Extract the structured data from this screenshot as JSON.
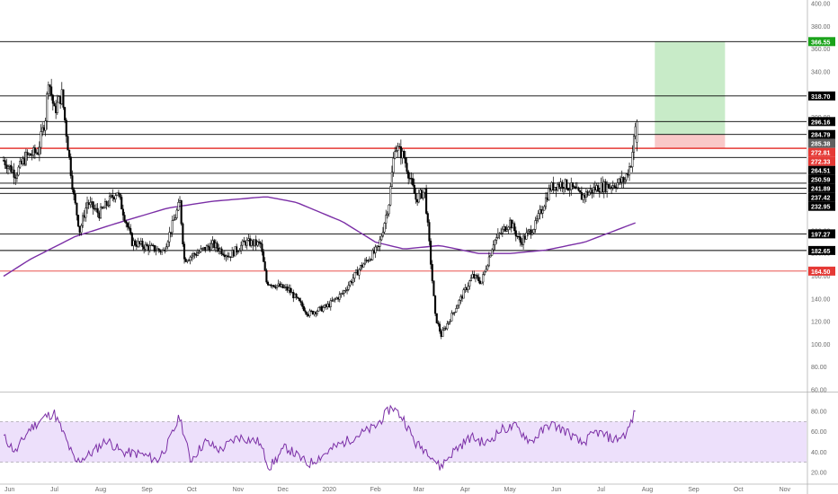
{
  "chart_data": {
    "type": "candlestick",
    "colors": {
      "background": "#ffffff",
      "candle": "#000000",
      "ma": "#7b2fa6",
      "rsi": "#7b2fa6",
      "rsi_band": "#ede0fb",
      "level_black": "#000000",
      "level_red": "#e53935",
      "target_zone": "#c8ebc8",
      "stop_zone": "#f9c8c8",
      "target_label": "#1aa31a",
      "red_label": "#e53935"
    },
    "price_axis": {
      "range": [
        60,
        400
      ],
      "ticks": [
        "400.00",
        "380.00",
        "360.00",
        "340.00",
        "320.00",
        "300.00",
        "280.00",
        "260.00",
        "240.00",
        "220.00",
        "200.00",
        "180.00",
        "160.00",
        "140.00",
        "120.00",
        "100.00",
        "80.00",
        "60.00"
      ]
    },
    "rsi_axis": {
      "range": [
        20,
        90
      ],
      "ticks": [
        "80.00",
        "60.00",
        "40.00",
        "20.00"
      ],
      "band": [
        30,
        70
      ]
    },
    "time_axis": [
      "Jun",
      "Jul",
      "Aug",
      "Sep",
      "Oct",
      "Nov",
      "Dec",
      "2020",
      "Feb",
      "Mar",
      "Apr",
      "May",
      "Jun",
      "Jul",
      "Aug",
      "Sep",
      "Oct",
      "Nov"
    ],
    "levels": [
      {
        "value": 366.55,
        "label": "366.55",
        "style": "green"
      },
      {
        "value": 318.7,
        "label": "318.70",
        "style": "black"
      },
      {
        "value": 296.16,
        "label": "296.16",
        "style": "black"
      },
      {
        "value": 284.79,
        "label": "284.79",
        "style": "black"
      },
      {
        "value": 285.38,
        "label": "285.38",
        "style": "gray"
      },
      {
        "value": 272.81,
        "label": "272.81",
        "style": "red"
      },
      {
        "value": 272.33,
        "label": "272.33",
        "style": "red"
      },
      {
        "value": 264.51,
        "label": "264.51",
        "style": "black"
      },
      {
        "value": 250.59,
        "label": "250.59",
        "style": "black"
      },
      {
        "value": 241.89,
        "label": "241.89",
        "style": "black"
      },
      {
        "value": 237.42,
        "label": "237.42",
        "style": "black"
      },
      {
        "value": 232.95,
        "label": "232.95",
        "style": "black"
      },
      {
        "value": 197.27,
        "label": "197.27",
        "style": "black"
      },
      {
        "value": 182.65,
        "label": "182.65",
        "style": "black"
      },
      {
        "value": 164.5,
        "label": "164.50",
        "style": "red"
      }
    ],
    "position": {
      "target": 366.55,
      "entry": 284.79,
      "stop": 272.33
    },
    "price_path": [
      [
        "2019-05-28",
        262
      ],
      [
        "2019-06-05",
        250
      ],
      [
        "2019-06-12",
        265
      ],
      [
        "2019-06-20",
        270
      ],
      [
        "2019-06-25",
        300
      ],
      [
        "2019-06-27",
        335
      ],
      [
        "2019-07-01",
        305
      ],
      [
        "2019-07-06",
        320
      ],
      [
        "2019-07-10",
        275
      ],
      [
        "2019-07-14",
        230
      ],
      [
        "2019-07-18",
        200
      ],
      [
        "2019-07-23",
        225
      ],
      [
        "2019-07-31",
        215
      ],
      [
        "2019-08-12",
        235
      ],
      [
        "2019-08-22",
        190
      ],
      [
        "2019-09-03",
        185
      ],
      [
        "2019-09-12",
        182
      ],
      [
        "2019-09-18",
        205
      ],
      [
        "2019-09-23",
        225
      ],
      [
        "2019-09-26",
        175
      ],
      [
        "2019-10-04",
        180
      ],
      [
        "2019-10-15",
        188
      ],
      [
        "2019-10-26",
        178
      ],
      [
        "2019-11-06",
        190
      ],
      [
        "2019-11-16",
        188
      ],
      [
        "2019-11-20",
        155
      ],
      [
        "2019-12-05",
        148
      ],
      [
        "2019-12-18",
        127
      ],
      [
        "2019-12-30",
        133
      ],
      [
        "2020-01-10",
        145
      ],
      [
        "2020-01-22",
        168
      ],
      [
        "2020-02-03",
        185
      ],
      [
        "2020-02-10",
        225
      ],
      [
        "2020-02-14",
        275
      ],
      [
        "2020-02-20",
        265
      ],
      [
        "2020-02-28",
        228
      ],
      [
        "2020-03-05",
        235
      ],
      [
        "2020-03-12",
        125
      ],
      [
        "2020-03-16",
        108
      ],
      [
        "2020-03-26",
        133
      ],
      [
        "2020-04-06",
        160
      ],
      [
        "2020-04-12",
        155
      ],
      [
        "2020-04-20",
        190
      ],
      [
        "2020-05-01",
        208
      ],
      [
        "2020-05-08",
        190
      ],
      [
        "2020-05-18",
        205
      ],
      [
        "2020-05-28",
        238
      ],
      [
        "2020-06-05",
        242
      ],
      [
        "2020-06-12",
        237
      ],
      [
        "2020-06-18",
        230
      ],
      [
        "2020-06-28",
        238
      ],
      [
        "2020-07-08",
        240
      ],
      [
        "2020-07-17",
        245
      ],
      [
        "2020-07-21",
        260
      ],
      [
        "2020-07-24",
        290
      ]
    ],
    "ma_path": [
      [
        "2019-05-28",
        160
      ],
      [
        "2019-06-15",
        175
      ],
      [
        "2019-07-15",
        195
      ],
      [
        "2019-08-15",
        208
      ],
      [
        "2019-09-15",
        220
      ],
      [
        "2019-10-15",
        226
      ],
      [
        "2019-11-20",
        230
      ],
      [
        "2019-12-10",
        225
      ],
      [
        "2020-01-10",
        208
      ],
      [
        "2020-02-01",
        190
      ],
      [
        "2020-02-20",
        184
      ],
      [
        "2020-03-15",
        187
      ],
      [
        "2020-04-10",
        180
      ],
      [
        "2020-05-01",
        180
      ],
      [
        "2020-05-25",
        183
      ],
      [
        "2020-06-20",
        190
      ],
      [
        "2020-07-10",
        200
      ],
      [
        "2020-07-24",
        207
      ]
    ],
    "rsi_path": [
      [
        "2019-05-28",
        55
      ],
      [
        "2019-06-05",
        40
      ],
      [
        "2019-06-14",
        62
      ],
      [
        "2019-06-25",
        75
      ],
      [
        "2019-07-01",
        78
      ],
      [
        "2019-07-08",
        55
      ],
      [
        "2019-07-15",
        30
      ],
      [
        "2019-07-25",
        38
      ],
      [
        "2019-08-05",
        52
      ],
      [
        "2019-08-15",
        40
      ],
      [
        "2019-08-28",
        38
      ],
      [
        "2019-09-08",
        32
      ],
      [
        "2019-09-15",
        48
      ],
      [
        "2019-09-23",
        75
      ],
      [
        "2019-09-30",
        32
      ],
      [
        "2019-10-10",
        50
      ],
      [
        "2019-10-20",
        42
      ],
      [
        "2019-11-01",
        55
      ],
      [
        "2019-11-15",
        50
      ],
      [
        "2019-11-22",
        25
      ],
      [
        "2019-12-03",
        45
      ],
      [
        "2019-12-18",
        28
      ],
      [
        "2020-01-05",
        45
      ],
      [
        "2020-01-18",
        55
      ],
      [
        "2020-02-01",
        65
      ],
      [
        "2020-02-12",
        85
      ],
      [
        "2020-02-20",
        72
      ],
      [
        "2020-02-28",
        48
      ],
      [
        "2020-03-08",
        40
      ],
      [
        "2020-03-15",
        25
      ],
      [
        "2020-03-25",
        42
      ],
      [
        "2020-04-05",
        55
      ],
      [
        "2020-04-15",
        48
      ],
      [
        "2020-04-25",
        62
      ],
      [
        "2020-05-05",
        65
      ],
      [
        "2020-05-15",
        50
      ],
      [
        "2020-05-28",
        68
      ],
      [
        "2020-06-08",
        60
      ],
      [
        "2020-06-18",
        48
      ],
      [
        "2020-06-28",
        60
      ],
      [
        "2020-07-10",
        52
      ],
      [
        "2020-07-18",
        58
      ],
      [
        "2020-07-24",
        80
      ]
    ]
  }
}
